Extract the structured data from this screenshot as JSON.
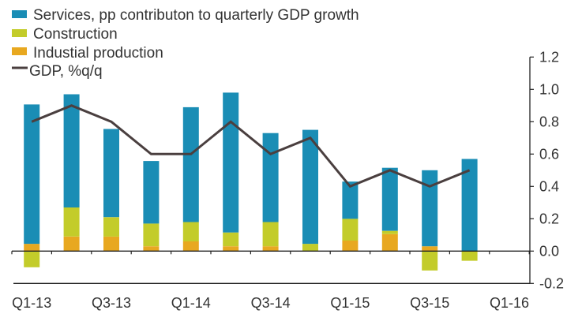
{
  "chart_data": {
    "type": "bar",
    "stacked": true,
    "title": "",
    "xlabel": "",
    "ylabel": "",
    "ylim": [
      -0.2,
      1.2
    ],
    "y_ticks": [
      "1.2",
      "1.0",
      "0.8",
      "0.6",
      "0.4",
      "0.2",
      "0.0",
      "-0.2"
    ],
    "y_tick_values": [
      1.2,
      1.0,
      0.8,
      0.6,
      0.4,
      0.2,
      0.0,
      -0.2
    ],
    "y_axis_side": "right",
    "grid": false,
    "legend_position": "top-left",
    "categories": [
      "Q1-13",
      "Q2-13",
      "Q3-13",
      "Q4-13",
      "Q1-14",
      "Q2-14",
      "Q3-14",
      "Q4-14",
      "Q1-15",
      "Q2-15",
      "Q3-15",
      "Q4-15",
      "Q1-16"
    ],
    "x_tick_labels": [
      "Q1-13",
      "Q3-13",
      "Q1-14",
      "Q3-14",
      "Q1-15",
      "Q3-15",
      "Q1-16"
    ],
    "series": [
      {
        "name": "Industial production",
        "kind": "bar",
        "color": "#e8a820",
        "values": [
          0.045,
          0.09,
          0.09,
          0.03,
          0.06,
          0.03,
          0.03,
          0.0,
          0.065,
          0.105,
          0.03,
          0.0,
          null
        ]
      },
      {
        "name": "Construction",
        "kind": "bar",
        "color": "#c3cc2a",
        "values": [
          -0.1,
          0.18,
          0.12,
          0.14,
          0.12,
          0.085,
          0.15,
          0.045,
          0.135,
          0.02,
          -0.12,
          -0.06,
          null
        ]
      },
      {
        "name": "Services, pp contributon to quarterly GDP growth",
        "kind": "bar",
        "color": "#1a8db5",
        "values": [
          0.862,
          0.7,
          0.545,
          0.387,
          0.71,
          0.865,
          0.55,
          0.705,
          0.23,
          0.39,
          0.47,
          0.57,
          null
        ]
      },
      {
        "name": "GDP, %q/q",
        "kind": "line",
        "color": "#4a3f3f",
        "values": [
          0.8,
          0.9,
          0.8,
          0.6,
          0.6,
          0.8,
          0.6,
          0.7,
          0.4,
          0.5,
          0.4,
          0.5,
          null
        ]
      }
    ],
    "legend": [
      {
        "label": "Services, pp contributon to quarterly GDP growth",
        "color": "#1a8db5",
        "marker": "square"
      },
      {
        "label": "Construction",
        "color": "#c3cc2a",
        "marker": "square"
      },
      {
        "label": "Industial production",
        "color": "#e8a820",
        "marker": "square"
      },
      {
        "label": "GDP, %q/q",
        "color": "#4a3f3f",
        "marker": "line"
      }
    ]
  }
}
